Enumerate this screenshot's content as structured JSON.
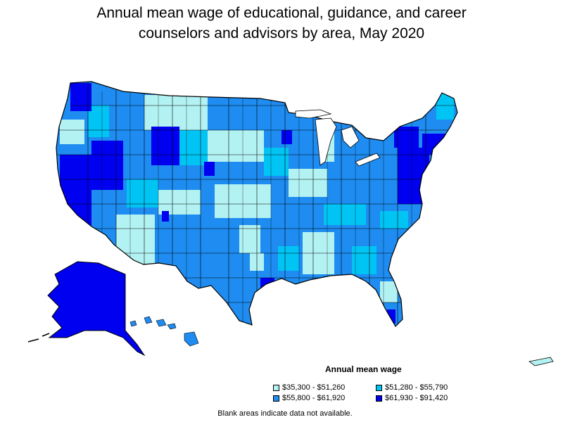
{
  "title": {
    "line1": "Annual mean wage of educational, guidance, and career",
    "line2": "counselors and advisors by area, May 2020"
  },
  "legend": {
    "title": "Annual mean wage",
    "items": [
      {
        "label": "$35,300 - $51,260",
        "color": "#b3f2f2"
      },
      {
        "label": "$51,280 - $55,790",
        "color": "#00c5f4"
      },
      {
        "label": "$55,800 - $61,920",
        "color": "#1e8cf0"
      },
      {
        "label": "$61,930 - $91,420",
        "color": "#0000f0"
      }
    ]
  },
  "note": "Blank areas indicate data not available.",
  "colors": {
    "outline": "#000000",
    "background": "#ffffff"
  }
}
